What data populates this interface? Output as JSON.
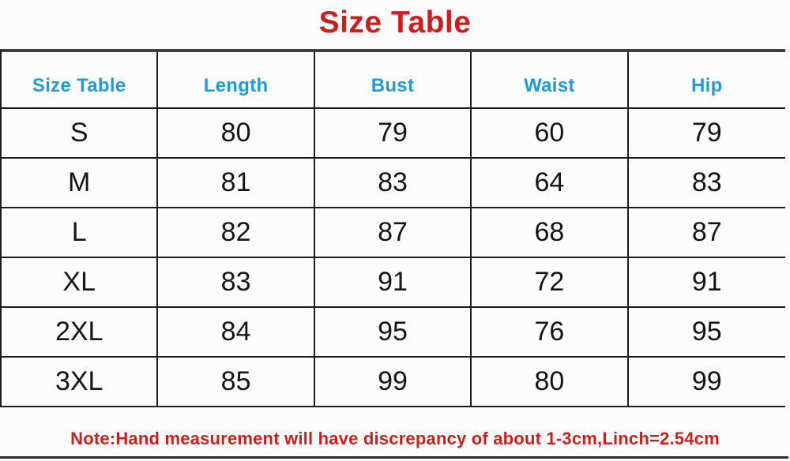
{
  "title": "Size Table",
  "note": "Note:Hand measurement will have discrepancy of about 1-3cm,Linch=2.54cm",
  "colors": {
    "title_red": "#d11c1c",
    "note_red": "#d11c1c",
    "header_blue": "#1e9cd7",
    "body_text": "#151515",
    "grid_line": "#1c1c1c",
    "top_rule": "#3f3f3f",
    "bottom_rule": "#2e2e2e",
    "background": "#fcfcfc"
  },
  "chart_data": {
    "type": "table",
    "title": "Size Table",
    "columns": [
      "Size Table",
      "Length",
      "Bust",
      "Waist",
      "Hip"
    ],
    "rows": [
      [
        "S",
        80,
        79,
        60,
        79
      ],
      [
        "M",
        81,
        83,
        64,
        83
      ],
      [
        "L",
        82,
        87,
        68,
        87
      ],
      [
        "XL",
        83,
        91,
        72,
        91
      ],
      [
        "2XL",
        84,
        95,
        76,
        95
      ],
      [
        "3XL",
        85,
        99,
        80,
        99
      ]
    ],
    "note": "Note:Hand measurement will have discrepancy of about 1-3cm,Linch=2.54cm"
  }
}
